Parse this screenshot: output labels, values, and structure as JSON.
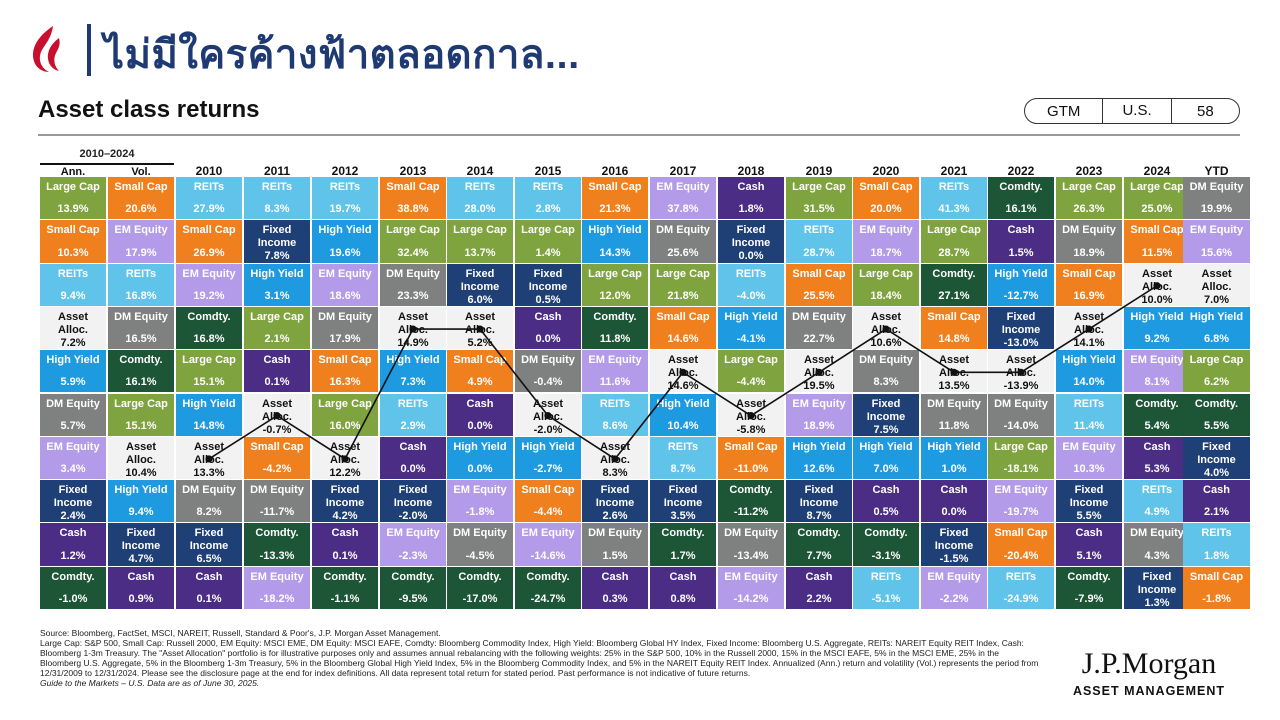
{
  "slide": {
    "title": "ไม่มีใครค้างฟ้าตลอดกาล...",
    "section_title": "Asset class returns",
    "tags": [
      "GTM",
      "U.S.",
      "58"
    ]
  },
  "brand": {
    "line1": "J.P.Morgan",
    "line2": "ASSET MANAGEMENT"
  },
  "colors": {
    "Large Cap": "#7fa33e",
    "Small Cap": "#f07f1e",
    "EM Equity": "#b39bea",
    "REITs": "#5fc3ea",
    "Asset Alloc.": "#f2f2f2",
    "DM Equity": "#7f8080",
    "Comdty.": "#1d5537",
    "High Yield": "#1e9ae0",
    "Fixed Income": "#1f3f77",
    "Cash": "#4b2d86"
  },
  "chart_data": {
    "type": "table",
    "range_label": "2010–2024",
    "columns": [
      "Ann.",
      "Vol.",
      "2010",
      "2011",
      "2012",
      "2013",
      "2014",
      "2015",
      "2016",
      "2017",
      "2018",
      "2019",
      "2020",
      "2021",
      "2022",
      "2023",
      "2024",
      "YTD"
    ],
    "cells": [
      [
        [
          "Large Cap",
          "13.9%"
        ],
        [
          "Small Cap",
          "10.3%"
        ],
        [
          "REITs",
          "9.4%"
        ],
        [
          "Asset Alloc.",
          "7.2%"
        ],
        [
          "High Yield",
          "5.9%"
        ],
        [
          "DM Equity",
          "5.7%"
        ],
        [
          "EM Equity",
          "3.4%"
        ],
        [
          "Fixed Income",
          "2.4%"
        ],
        [
          "Cash",
          "1.2%"
        ],
        [
          "Comdty.",
          "-1.0%"
        ]
      ],
      [
        [
          "Small Cap",
          "20.6%"
        ],
        [
          "EM Equity",
          "17.9%"
        ],
        [
          "REITs",
          "16.8%"
        ],
        [
          "DM Equity",
          "16.5%"
        ],
        [
          "Comdty.",
          "16.1%"
        ],
        [
          "Large Cap",
          "15.1%"
        ],
        [
          "Asset Alloc.",
          "10.4%"
        ],
        [
          "High Yield",
          "9.4%"
        ],
        [
          "Fixed Income",
          "4.7%"
        ],
        [
          "Cash",
          "0.9%"
        ]
      ],
      [
        [
          "REITs",
          "27.9%"
        ],
        [
          "Small Cap",
          "26.9%"
        ],
        [
          "EM Equity",
          "19.2%"
        ],
        [
          "Comdty.",
          "16.8%"
        ],
        [
          "Large Cap",
          "15.1%"
        ],
        [
          "High Yield",
          "14.8%"
        ],
        [
          "Asset Alloc.",
          "13.3%"
        ],
        [
          "DM Equity",
          "8.2%"
        ],
        [
          "Fixed Income",
          "6.5%"
        ],
        [
          "Cash",
          "0.1%"
        ]
      ],
      [
        [
          "REITs",
          "8.3%"
        ],
        [
          "Fixed Income",
          "7.8%"
        ],
        [
          "High Yield",
          "3.1%"
        ],
        [
          "Large Cap",
          "2.1%"
        ],
        [
          "Cash",
          "0.1%"
        ],
        [
          "Asset Alloc.",
          "-0.7%"
        ],
        [
          "Small Cap",
          "-4.2%"
        ],
        [
          "DM Equity",
          "-11.7%"
        ],
        [
          "Comdty.",
          "-13.3%"
        ],
        [
          "EM Equity",
          "-18.2%"
        ]
      ],
      [
        [
          "REITs",
          "19.7%"
        ],
        [
          "High Yield",
          "19.6%"
        ],
        [
          "EM Equity",
          "18.6%"
        ],
        [
          "DM Equity",
          "17.9%"
        ],
        [
          "Small Cap",
          "16.3%"
        ],
        [
          "Large Cap",
          "16.0%"
        ],
        [
          "Asset Alloc.",
          "12.2%"
        ],
        [
          "Fixed Income",
          "4.2%"
        ],
        [
          "Cash",
          "0.1%"
        ],
        [
          "Comdty.",
          "-1.1%"
        ]
      ],
      [
        [
          "Small Cap",
          "38.8%"
        ],
        [
          "Large Cap",
          "32.4%"
        ],
        [
          "DM Equity",
          "23.3%"
        ],
        [
          "Asset Alloc.",
          "14.9%"
        ],
        [
          "High Yield",
          "7.3%"
        ],
        [
          "REITs",
          "2.9%"
        ],
        [
          "Cash",
          "0.0%"
        ],
        [
          "Fixed Income",
          "-2.0%"
        ],
        [
          "EM Equity",
          "-2.3%"
        ],
        [
          "Comdty.",
          "-9.5%"
        ]
      ],
      [
        [
          "REITs",
          "28.0%"
        ],
        [
          "Large Cap",
          "13.7%"
        ],
        [
          "Fixed Income",
          "6.0%"
        ],
        [
          "Asset Alloc.",
          "5.2%"
        ],
        [
          "Small Cap",
          "4.9%"
        ],
        [
          "Cash",
          "0.0%"
        ],
        [
          "High Yield",
          "0.0%"
        ],
        [
          "EM Equity",
          "-1.8%"
        ],
        [
          "DM Equity",
          "-4.5%"
        ],
        [
          "Comdty.",
          "-17.0%"
        ]
      ],
      [
        [
          "REITs",
          "2.8%"
        ],
        [
          "Large Cap",
          "1.4%"
        ],
        [
          "Fixed Income",
          "0.5%"
        ],
        [
          "Cash",
          "0.0%"
        ],
        [
          "DM Equity",
          "-0.4%"
        ],
        [
          "Asset Alloc.",
          "-2.0%"
        ],
        [
          "High Yield",
          "-2.7%"
        ],
        [
          "Small Cap",
          "-4.4%"
        ],
        [
          "EM Equity",
          "-14.6%"
        ],
        [
          "Comdty.",
          "-24.7%"
        ]
      ],
      [
        [
          "Small Cap",
          "21.3%"
        ],
        [
          "High Yield",
          "14.3%"
        ],
        [
          "Large Cap",
          "12.0%"
        ],
        [
          "Comdty.",
          "11.8%"
        ],
        [
          "EM Equity",
          "11.6%"
        ],
        [
          "REITs",
          "8.6%"
        ],
        [
          "Asset Alloc.",
          "8.3%"
        ],
        [
          "Fixed Income",
          "2.6%"
        ],
        [
          "DM Equity",
          "1.5%"
        ],
        [
          "Cash",
          "0.3%"
        ]
      ],
      [
        [
          "EM Equity",
          "37.8%"
        ],
        [
          "DM Equity",
          "25.6%"
        ],
        [
          "Large Cap",
          "21.8%"
        ],
        [
          "Small Cap",
          "14.6%"
        ],
        [
          "Asset Alloc.",
          "14.6%"
        ],
        [
          "High Yield",
          "10.4%"
        ],
        [
          "REITs",
          "8.7%"
        ],
        [
          "Fixed Income",
          "3.5%"
        ],
        [
          "Comdty.",
          "1.7%"
        ],
        [
          "Cash",
          "0.8%"
        ]
      ],
      [
        [
          "Cash",
          "1.8%"
        ],
        [
          "Fixed Income",
          "0.0%"
        ],
        [
          "REITs",
          "-4.0%"
        ],
        [
          "High Yield",
          "-4.1%"
        ],
        [
          "Large Cap",
          "-4.4%"
        ],
        [
          "Asset Alloc.",
          "-5.8%"
        ],
        [
          "Small Cap",
          "-11.0%"
        ],
        [
          "Comdty.",
          "-11.2%"
        ],
        [
          "DM Equity",
          "-13.4%"
        ],
        [
          "EM Equity",
          "-14.2%"
        ]
      ],
      [
        [
          "Large Cap",
          "31.5%"
        ],
        [
          "REITs",
          "28.7%"
        ],
        [
          "Small Cap",
          "25.5%"
        ],
        [
          "DM Equity",
          "22.7%"
        ],
        [
          "Asset Alloc.",
          "19.5%"
        ],
        [
          "EM Equity",
          "18.9%"
        ],
        [
          "High Yield",
          "12.6%"
        ],
        [
          "Fixed Income",
          "8.7%"
        ],
        [
          "Comdty.",
          "7.7%"
        ],
        [
          "Cash",
          "2.2%"
        ]
      ],
      [
        [
          "Small Cap",
          "20.0%"
        ],
        [
          "EM Equity",
          "18.7%"
        ],
        [
          "Large Cap",
          "18.4%"
        ],
        [
          "Asset Alloc.",
          "10.6%"
        ],
        [
          "DM Equity",
          "8.3%"
        ],
        [
          "Fixed Income",
          "7.5%"
        ],
        [
          "High Yield",
          "7.0%"
        ],
        [
          "Cash",
          "0.5%"
        ],
        [
          "Comdty.",
          "-3.1%"
        ],
        [
          "REITs",
          "-5.1%"
        ]
      ],
      [
        [
          "REITs",
          "41.3%"
        ],
        [
          "Large Cap",
          "28.7%"
        ],
        [
          "Comdty.",
          "27.1%"
        ],
        [
          "Small Cap",
          "14.8%"
        ],
        [
          "Asset Alloc.",
          "13.5%"
        ],
        [
          "DM Equity",
          "11.8%"
        ],
        [
          "High Yield",
          "1.0%"
        ],
        [
          "Cash",
          "0.0%"
        ],
        [
          "Fixed Income",
          "-1.5%"
        ],
        [
          "EM Equity",
          "-2.2%"
        ]
      ],
      [
        [
          "Comdty.",
          "16.1%"
        ],
        [
          "Cash",
          "1.5%"
        ],
        [
          "High Yield",
          "-12.7%"
        ],
        [
          "Fixed Income",
          "-13.0%"
        ],
        [
          "Asset Alloc.",
          "-13.9%"
        ],
        [
          "DM Equity",
          "-14.0%"
        ],
        [
          "Large Cap",
          "-18.1%"
        ],
        [
          "EM Equity",
          "-19.7%"
        ],
        [
          "Small Cap",
          "-20.4%"
        ],
        [
          "REITs",
          "-24.9%"
        ]
      ],
      [
        [
          "Large Cap",
          "26.3%"
        ],
        [
          "DM Equity",
          "18.9%"
        ],
        [
          "Small Cap",
          "16.9%"
        ],
        [
          "Asset Alloc.",
          "14.1%"
        ],
        [
          "High Yield",
          "14.0%"
        ],
        [
          "REITs",
          "11.4%"
        ],
        [
          "EM Equity",
          "10.3%"
        ],
        [
          "Fixed Income",
          "5.5%"
        ],
        [
          "Cash",
          "5.1%"
        ],
        [
          "Comdty.",
          "-7.9%"
        ]
      ],
      [
        [
          "Large Cap",
          "25.0%"
        ],
        [
          "Small Cap",
          "11.5%"
        ],
        [
          "Asset Alloc.",
          "10.0%"
        ],
        [
          "High Yield",
          "9.2%"
        ],
        [
          "EM Equity",
          "8.1%"
        ],
        [
          "Comdty.",
          "5.4%"
        ],
        [
          "Cash",
          "5.3%"
        ],
        [
          "REITs",
          "4.9%"
        ],
        [
          "DM Equity",
          "4.3%"
        ],
        [
          "Fixed Income",
          "1.3%"
        ]
      ],
      [
        [
          "DM Equity",
          "19.9%"
        ],
        [
          "EM Equity",
          "15.6%"
        ],
        [
          "Asset Alloc.",
          "7.0%"
        ],
        [
          "High Yield",
          "6.8%"
        ],
        [
          "Large Cap",
          "6.2%"
        ],
        [
          "Comdty.",
          "5.5%"
        ],
        [
          "Fixed Income",
          "4.0%"
        ],
        [
          "Cash",
          "2.1%"
        ],
        [
          "REITs",
          "1.8%"
        ],
        [
          "Small Cap",
          "-1.8%"
        ]
      ]
    ],
    "highlight_series": "Asset Alloc."
  },
  "footnotes": {
    "line1": "Source: Bloomberg, FactSet, MSCI, NAREIT, Russell, Standard & Poor's, J.P. Morgan Asset Management.",
    "line2": "Large Cap: S&P 500, Small Cap: Russell 2000, EM Equity: MSCI EME, DM Equity: MSCI EAFE, Comdty: Bloomberg Commodity Index, High Yield: Bloomberg Global HY Index, Fixed Income: Bloomberg U.S. Aggregate, REITs: NAREIT Equity REIT Index, Cash: Bloomberg 1-3m Treasury. The \"Asset Allocation\" portfolio is for illustrative purposes only and assumes annual rebalancing with the following weights: 25% in the S&P 500, 10% in the Russell 2000, 15% in the MSCI EAFE, 5% in the MSCI EME, 25% in the Bloomberg U.S. Aggregate, 5% in the Bloomberg 1-3m Treasury, 5% in the Bloomberg Global High Yield Index, 5% in the Bloomberg Commodity Index, and 5% in the NAREIT Equity REIT Index. Annualized (Ann.) return and volatility (Vol.) represents the period from 12/31/2009 to 12/31/2024. Please see the disclosure page at the end for index definitions. All data represent total return for stated period. Past performance is not indicative of future returns.",
    "line3": "Guide to the Markets – U.S. Data are as of June 30, 2025."
  }
}
